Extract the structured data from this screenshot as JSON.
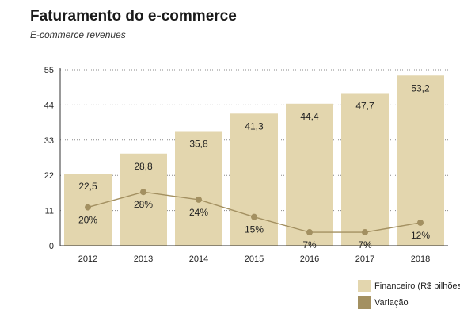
{
  "header": {
    "title": "Faturamento do e-commerce",
    "subtitle": "E-commerce revenues"
  },
  "colors": {
    "bar": "#e3d6ae",
    "line": "#a39061",
    "marker": "#a39061",
    "axis": "#333333",
    "grid": "#888888"
  },
  "chart_data": {
    "type": "bar",
    "categories": [
      "2012",
      "2013",
      "2014",
      "2015",
      "2016",
      "2017",
      "2018"
    ],
    "ylim": [
      0,
      55
    ],
    "yticks": [
      "0",
      "11",
      "22",
      "33",
      "44",
      "55"
    ],
    "grid": "horizontal",
    "legend_position": "bottom-right",
    "series": [
      {
        "name": "Financeiro (R$ bilhões)",
        "kind": "bar",
        "values": [
          22.5,
          28.8,
          35.8,
          41.3,
          44.4,
          47.7,
          53.2
        ],
        "labels": [
          "22,5",
          "28,8",
          "35,8",
          "41,3",
          "44,4",
          "47,7",
          "53,2"
        ]
      },
      {
        "name": "Variação",
        "kind": "line",
        "values": [
          20,
          28,
          24,
          15,
          7,
          7,
          12
        ],
        "labels": [
          "20%",
          "28%",
          "24%",
          "15%",
          "7%",
          "7%",
          "12%"
        ]
      }
    ]
  }
}
